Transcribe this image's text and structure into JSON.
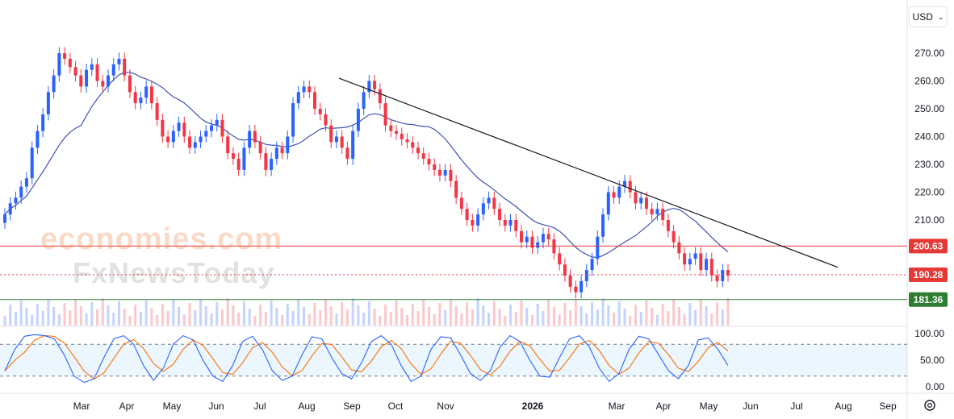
{
  "currency": {
    "label": "USD"
  },
  "watermark": {
    "line1": "economies.com",
    "line2": "FxNewsToday"
  },
  "chart_data": {
    "type": "candlestick",
    "price_axis": {
      "min": 180,
      "max": 275,
      "ticks": [
        270,
        260,
        250,
        240,
        230,
        220,
        210
      ]
    },
    "time_axis": [
      "Mar",
      "Apr",
      "May",
      "Jun",
      "Jul",
      "Aug",
      "Sep",
      "Oct",
      "Nov",
      "2026",
      "Mar",
      "Apr",
      "May",
      "Jun",
      "Jul",
      "Aug",
      "Sep"
    ],
    "price_levels": [
      {
        "label": "200.63",
        "value": 200.63,
        "color": "#e53935",
        "style": "solid"
      },
      {
        "label": "190.28",
        "value": 190.28,
        "color": "#e53935",
        "style": "dotted"
      },
      {
        "label": "181.36",
        "value": 181.36,
        "color": "#2e7d32",
        "style": "solid"
      }
    ],
    "trendline": {
      "from": {
        "date": "2025-09",
        "price": 261
      },
      "to": {
        "date": "2026-06",
        "price": 193
      },
      "color": "#131722"
    },
    "moving_average": {
      "color": "#3f51b5"
    },
    "candle_closes": [
      212,
      216,
      218,
      222,
      225,
      236,
      242,
      248,
      256,
      262,
      270,
      268,
      265,
      262,
      258,
      264,
      266,
      260,
      258,
      262,
      266,
      268,
      262,
      256,
      252,
      254,
      258,
      252,
      246,
      240,
      238,
      242,
      245,
      240,
      236,
      238,
      240,
      242,
      244,
      246,
      240,
      234,
      232,
      228,
      236,
      242,
      238,
      234,
      228,
      232,
      236,
      234,
      240,
      252,
      256,
      258,
      256,
      250,
      248,
      244,
      238,
      240,
      236,
      232,
      242,
      250,
      256,
      260,
      257,
      252,
      244,
      242,
      241,
      239,
      238,
      236,
      234,
      232,
      230,
      228,
      226,
      228,
      224,
      218,
      214,
      210,
      208,
      212,
      216,
      218,
      214,
      210,
      208,
      210,
      206,
      202,
      204,
      200,
      202,
      205,
      203,
      198,
      194,
      190,
      186,
      184,
      188,
      192,
      196,
      204,
      212,
      220,
      218,
      222,
      224,
      220,
      216,
      218,
      214,
      212,
      214,
      210,
      206,
      202,
      198,
      194,
      196,
      198,
      192,
      196,
      190,
      188,
      192,
      190
    ]
  },
  "oscillator": {
    "ticks": [
      "100.00",
      "50.00",
      "0.00"
    ],
    "upper_band": 80,
    "lower_band": 20,
    "k_values": [
      30,
      70,
      95,
      98,
      96,
      90,
      60,
      20,
      8,
      15,
      55,
      90,
      96,
      80,
      40,
      12,
      35,
      80,
      96,
      88,
      50,
      20,
      10,
      40,
      85,
      95,
      70,
      30,
      12,
      20,
      60,
      94,
      90,
      55,
      25,
      15,
      45,
      85,
      96,
      80,
      40,
      10,
      20,
      70,
      94,
      92,
      60,
      25,
      12,
      30,
      75,
      96,
      85,
      50,
      20,
      18,
      55,
      90,
      96,
      75,
      35,
      10,
      25,
      70,
      95,
      90,
      60,
      30,
      15,
      40,
      88,
      92,
      70,
      40
    ]
  }
}
